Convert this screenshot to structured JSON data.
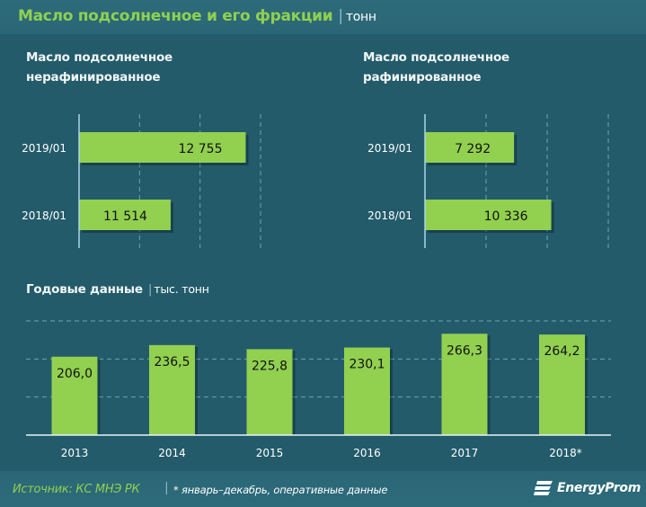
{
  "header": {
    "title": "Масло подсолнечное и его фракции",
    "separator": "|",
    "unit": "тонн"
  },
  "colors": {
    "background": "#235b6a",
    "bar": "#92d050",
    "title_green": "#8fd14f",
    "axis_line": "#a9d8e8",
    "gridline": "#6fa3b3"
  },
  "chart_data": [
    {
      "type": "bar",
      "orientation": "horizontal",
      "title": "Масло подсолнечное\nнерафинированное",
      "categories": [
        "2019/01",
        "2018/01"
      ],
      "values": [
        12755,
        11514
      ],
      "value_labels": [
        "12 755",
        "11 514"
      ],
      "xlim": [
        10000,
        13000
      ],
      "x_gridlines": [
        11000,
        12000,
        13000
      ],
      "grid": true,
      "xlabel": "",
      "ylabel": ""
    },
    {
      "type": "bar",
      "orientation": "horizontal",
      "title": "Масло подсолнечное\nрафинированное",
      "categories": [
        "2019/01",
        "2018/01"
      ],
      "values": [
        7292,
        10336
      ],
      "value_labels": [
        "7 292",
        "10 336"
      ],
      "xlim": [
        0,
        15000
      ],
      "x_gridlines": [
        5000,
        10000,
        15000
      ],
      "grid": true,
      "xlabel": "",
      "ylabel": ""
    },
    {
      "type": "bar",
      "orientation": "vertical",
      "title": "Годовые данные",
      "unit": "тыс. тонн",
      "categories": [
        "2013",
        "2014",
        "2015",
        "2016",
        "2017",
        "2018*"
      ],
      "values": [
        206.0,
        236.5,
        225.8,
        230.1,
        266.3,
        264.2
      ],
      "value_labels": [
        "206,0",
        "236,5",
        "225,8",
        "230,1",
        "266,3",
        "264,2"
      ],
      "ylim": [
        0,
        300
      ],
      "y_gridlines": [
        100,
        200,
        300
      ],
      "grid": true,
      "xlabel": "",
      "ylabel": ""
    }
  ],
  "footer": {
    "source": "Источник: КС МНЭ РК",
    "separator": "|",
    "note": "* январь–декабрь, оперативные данные",
    "logo_text": "EnergyProm"
  }
}
